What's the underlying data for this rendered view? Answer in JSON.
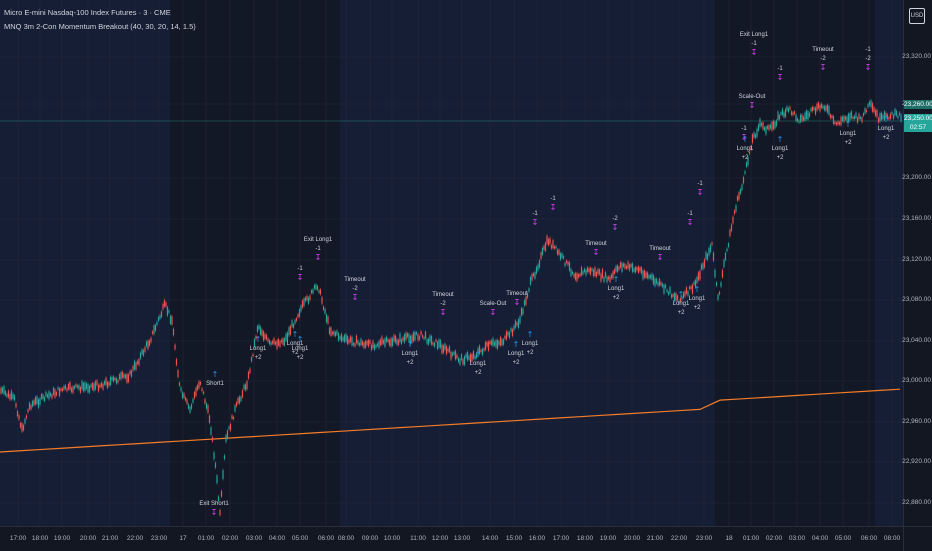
{
  "legend": {
    "symbol": "Micro E-mini Nasdaq-100 Index Futures · 3 · CME",
    "indicator": "MNQ 3m 2-Con Momentum Breakout (40, 30, 20, 14, 1.5)"
  },
  "currency_button": "USD",
  "price_axis": {
    "labels": [
      "23,320.00",
      "23,280.00",
      "23,200.00",
      "23,160.00",
      "23,120.00",
      "23,080.00",
      "23,040.00",
      "23,000.00",
      "22,960.00",
      "22,920.00",
      "22,880.00"
    ],
    "current_price": "23,250.00",
    "countdown": "02:57",
    "upper_tag": "23,260.00"
  },
  "time_axis": {
    "labels": [
      "17:00",
      "18:00",
      "19:00",
      "20:00",
      "21:00",
      "22:00",
      "23:00",
      "17",
      "01:00",
      "02:00",
      "03:00",
      "04:00",
      "05:00",
      "06:00",
      "08:00",
      "09:00",
      "10:00",
      "11:00",
      "12:00",
      "13:00",
      "14:00",
      "15:00",
      "16:00",
      "17:00",
      "18:00",
      "19:00",
      "20:00",
      "21:00",
      "22:00",
      "23:00",
      "18",
      "01:00",
      "02:00",
      "03:00",
      "04:00",
      "05:00",
      "06:00",
      "08:00"
    ]
  },
  "colors": {
    "background": "#131722",
    "session_shade": "#1a2547",
    "up_candle": "#26a69a",
    "down_candle": "#ef5350",
    "moving_avg": "#f57c28",
    "entry_marker": "#2196f3",
    "exit_marker": "#e040fb",
    "price_line": "#26a69a"
  },
  "trade_labels": [
    {
      "text": "Exit Long1",
      "kind": "exit"
    },
    {
      "text": "-1",
      "kind": "exit"
    },
    {
      "text": "-2",
      "kind": "exit"
    },
    {
      "text": "Timeout",
      "kind": "exit"
    },
    {
      "text": "Scale-Out",
      "kind": "exit"
    },
    {
      "text": "Long1",
      "kind": "entry"
    },
    {
      "text": "+2",
      "kind": "entry"
    },
    {
      "text": "Short1",
      "kind": "entry"
    },
    {
      "text": "Exit Short1",
      "kind": "exit"
    }
  ]
}
